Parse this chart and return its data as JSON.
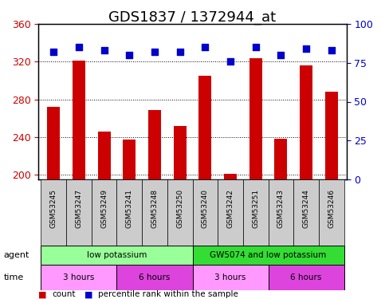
{
  "title": "GDS1837 / 1372944_at",
  "samples": [
    "GSM53245",
    "GSM53247",
    "GSM53249",
    "GSM53241",
    "GSM53248",
    "GSM53250",
    "GSM53240",
    "GSM53242",
    "GSM53251",
    "GSM53243",
    "GSM53244",
    "GSM53246"
  ],
  "counts": [
    272,
    321,
    246,
    237,
    269,
    252,
    305,
    201,
    324,
    238,
    316,
    288
  ],
  "percentiles": [
    82,
    85,
    83,
    80,
    82,
    82,
    85,
    76,
    85,
    80,
    84,
    83
  ],
  "ylim_left": [
    195,
    360
  ],
  "yticks_left": [
    200,
    240,
    280,
    320,
    360
  ],
  "ylim_right": [
    0,
    100
  ],
  "yticks_right": [
    0,
    25,
    50,
    75,
    100
  ],
  "bar_color": "#cc0000",
  "dot_color": "#0000cc",
  "agent_groups": [
    {
      "label": "low potassium",
      "start": 0,
      "end": 6,
      "color": "#99ff99"
    },
    {
      "label": "GW5074 and low potassium",
      "start": 6,
      "end": 12,
      "color": "#33dd33"
    }
  ],
  "time_groups": [
    {
      "label": "3 hours",
      "start": 0,
      "end": 3,
      "color": "#ff99ff"
    },
    {
      "label": "6 hours",
      "start": 3,
      "end": 6,
      "color": "#dd44dd"
    },
    {
      "label": "3 hours",
      "start": 6,
      "end": 9,
      "color": "#ff99ff"
    },
    {
      "label": "6 hours",
      "start": 9,
      "end": 12,
      "color": "#dd44dd"
    }
  ],
  "legend_items": [
    {
      "label": "count",
      "color": "#cc0000",
      "marker": "s"
    },
    {
      "label": "percentile rank within the sample",
      "color": "#0000cc",
      "marker": "s"
    }
  ],
  "grid_color": "black",
  "background_color": "white",
  "tick_label_color_left": "#cc0000",
  "tick_label_color_right": "#0000cc",
  "title_fontsize": 13,
  "axis_label_fontsize": 9,
  "tick_fontsize": 9
}
